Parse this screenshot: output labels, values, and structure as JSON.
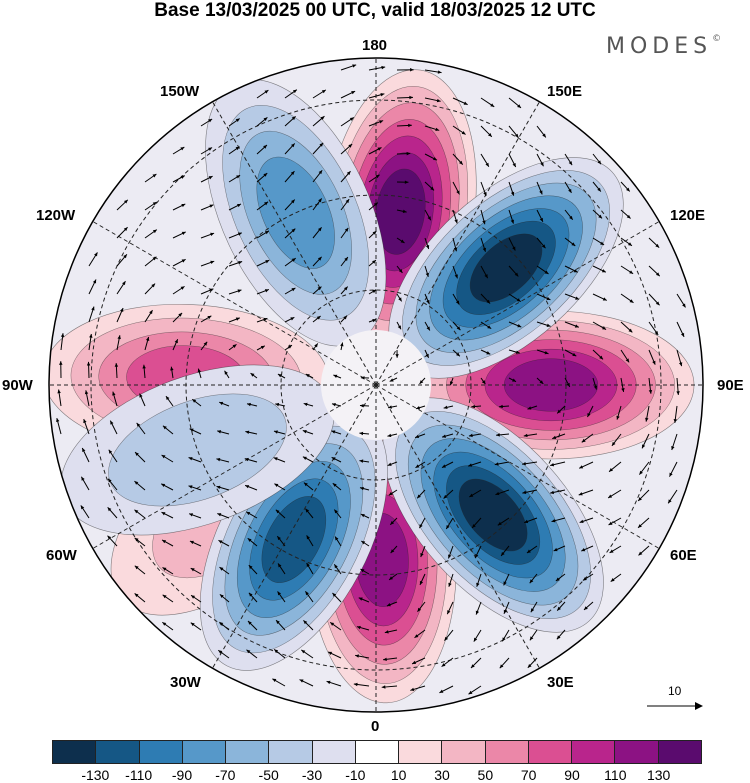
{
  "title": "Base 13/03/2025 00 UTC, valid 18/03/2025 12 UTC",
  "brand": {
    "name": "MODES",
    "mark": "©"
  },
  "map": {
    "projection": "north-polar-stereographic",
    "longitude_labels": [
      {
        "id": "lon-180",
        "text": "180"
      },
      {
        "id": "lon-150e",
        "text": "150E"
      },
      {
        "id": "lon-120e",
        "text": "120E"
      },
      {
        "id": "lon-90e",
        "text": "90E"
      },
      {
        "id": "lon-60e",
        "text": "60E"
      },
      {
        "id": "lon-30e",
        "text": "30E"
      },
      {
        "id": "lon-0",
        "text": "0"
      },
      {
        "id": "lon-30w",
        "text": "30W"
      },
      {
        "id": "lon-60w",
        "text": "60W"
      },
      {
        "id": "lon-90w",
        "text": "90W"
      },
      {
        "id": "lon-120w",
        "text": "120W"
      },
      {
        "id": "lon-150w",
        "text": "150W"
      }
    ],
    "anomaly_lobes": [
      {
        "sign": "positive",
        "lon": 172,
        "peak": 130
      },
      {
        "sign": "positive",
        "lon": 90,
        "peak": 125
      },
      {
        "sign": "positive",
        "lon": 2,
        "peak": 125
      },
      {
        "sign": "positive",
        "lon": -92,
        "peak": 75
      },
      {
        "sign": "positive",
        "lon": -50,
        "peak": 40
      },
      {
        "sign": "negative",
        "lon": 132,
        "peak": -130
      },
      {
        "sign": "negative",
        "lon": 42,
        "peak": -130
      },
      {
        "sign": "negative",
        "lon": -28,
        "peak": -125
      },
      {
        "sign": "negative",
        "lon": -155,
        "peak": -85
      },
      {
        "sign": "negative",
        "lon": -70,
        "peak": -40
      }
    ]
  },
  "vector_reference": {
    "label": "10"
  },
  "colorbar": {
    "colors": [
      "#0d2f4d",
      "#155785",
      "#2e7cb3",
      "#5698c9",
      "#8bb5da",
      "#b6cae5",
      "#dedfef",
      "#ffffff",
      "#fadadd",
      "#f3b6c4",
      "#eb87a8",
      "#db4f92",
      "#b9258c",
      "#8c1283",
      "#5a0b6e"
    ],
    "ticks": [
      "-130",
      "-110",
      "-90",
      "-70",
      "-50",
      "-30",
      "-10",
      "10",
      "30",
      "50",
      "70",
      "90",
      "110",
      "130"
    ]
  }
}
